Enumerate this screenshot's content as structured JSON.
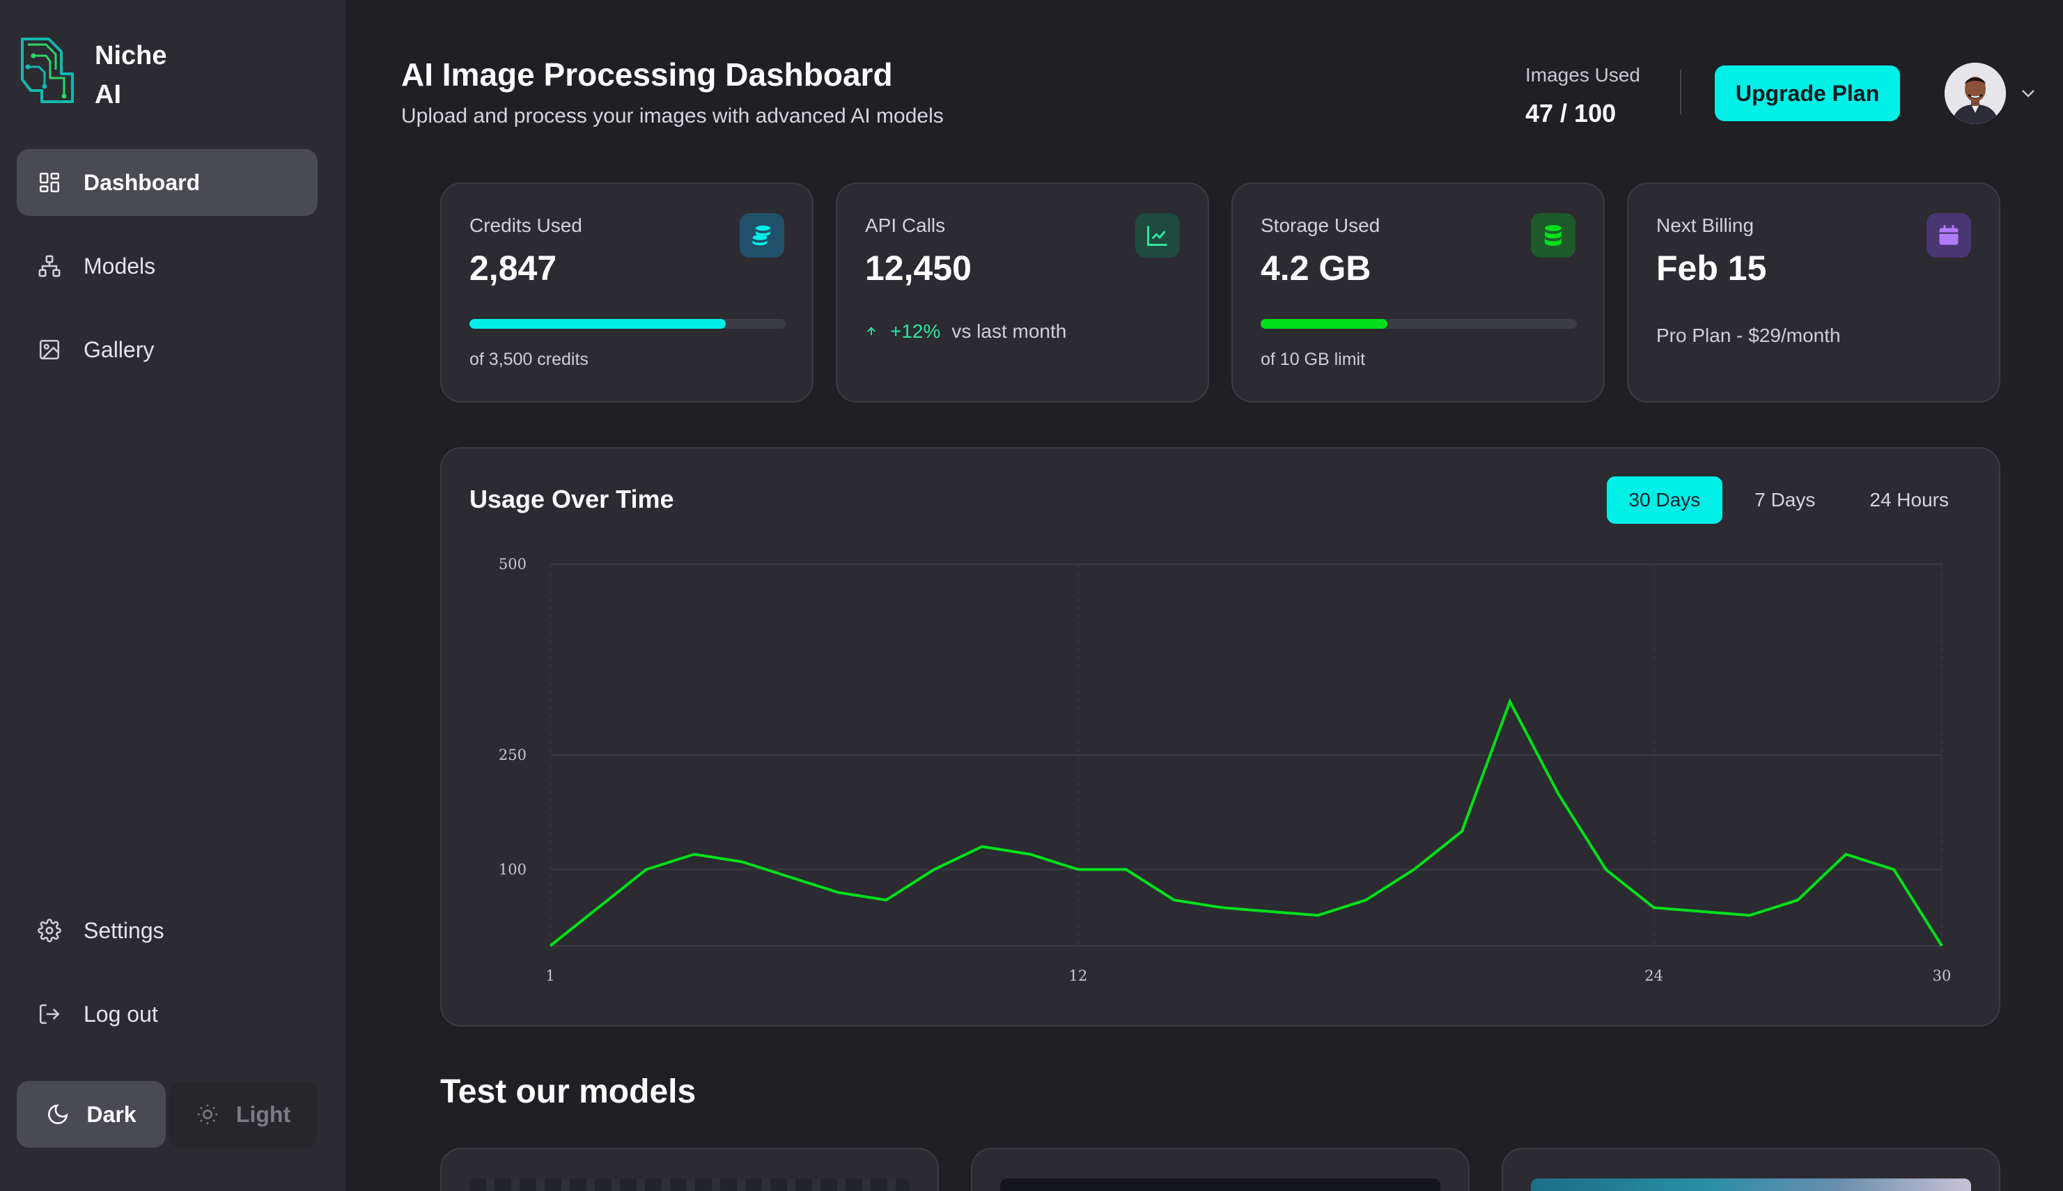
{
  "brand": {
    "name": "Niche AI"
  },
  "sidebar": {
    "items": [
      {
        "label": "Dashboard",
        "icon": "dashboard-icon",
        "active": true
      },
      {
        "label": "Models",
        "icon": "models-icon",
        "active": false
      },
      {
        "label": "Gallery",
        "icon": "gallery-icon",
        "active": false
      }
    ],
    "bottom_items": [
      {
        "label": "Settings",
        "icon": "gear-icon"
      },
      {
        "label": "Log out",
        "icon": "logout-icon"
      }
    ],
    "theme": {
      "dark_label": "Dark",
      "light_label": "Light",
      "selected": "Dark"
    }
  },
  "header": {
    "title": "AI Image Processing Dashboard",
    "subtitle": "Upload and process your images with advanced AI models",
    "images_used_label": "Images Used",
    "images_used_value": "47 / 100",
    "upgrade_label": "Upgrade Plan"
  },
  "stats": [
    {
      "label": "Credits Used",
      "value": "2,847",
      "icon": "coins-icon",
      "progress": 0.81,
      "foot": "of 3,500 credits"
    },
    {
      "label": "API Calls",
      "value": "12,450",
      "icon": "chart-line-icon",
      "trend_pct": "+12%",
      "trend_text": "vs last month"
    },
    {
      "label": "Storage Used",
      "value": "4.2 GB",
      "icon": "database-icon",
      "progress": 0.4,
      "foot": "of 10 GB limit"
    },
    {
      "label": "Next Billing",
      "value": "Feb 15",
      "icon": "calendar-icon",
      "sub": "Pro Plan - $29/month"
    }
  ],
  "colors": {
    "accent": "#00f0e8",
    "success": "#00e01a",
    "trend_up": "#2ee59d",
    "sidebar_bg": "#2b2b31",
    "page_bg": "#1f1f24"
  },
  "usage_chart": {
    "title": "Usage Over Time",
    "ranges": [
      "30 Days",
      "7 Days",
      "24 Hours"
    ],
    "selected_range": "30 Days"
  },
  "chart_data": {
    "type": "line",
    "title": "Usage Over Time",
    "x": [
      1,
      2,
      3,
      4,
      5,
      6,
      7,
      8,
      9,
      10,
      11,
      12,
      13,
      14,
      15,
      16,
      17,
      18,
      19,
      20,
      21,
      22,
      23,
      24,
      25,
      26,
      27,
      28,
      29,
      30
    ],
    "y_ticks": [
      100,
      250,
      500
    ],
    "x_ticks": [
      1,
      12,
      24,
      30
    ],
    "series": [
      {
        "values": [
          0,
          50,
          100,
          120,
          110,
          90,
          70,
          60,
          100,
          130,
          120,
          100,
          100,
          60,
          50,
          45,
          40,
          60,
          100,
          150,
          320,
          200,
          100,
          50,
          45,
          40,
          60,
          120,
          100,
          0
        ],
        "color": "#00e01a"
      }
    ],
    "ylim": [
      0,
      500
    ],
    "grid": true
  },
  "models_section": {
    "title": "Test our models"
  }
}
